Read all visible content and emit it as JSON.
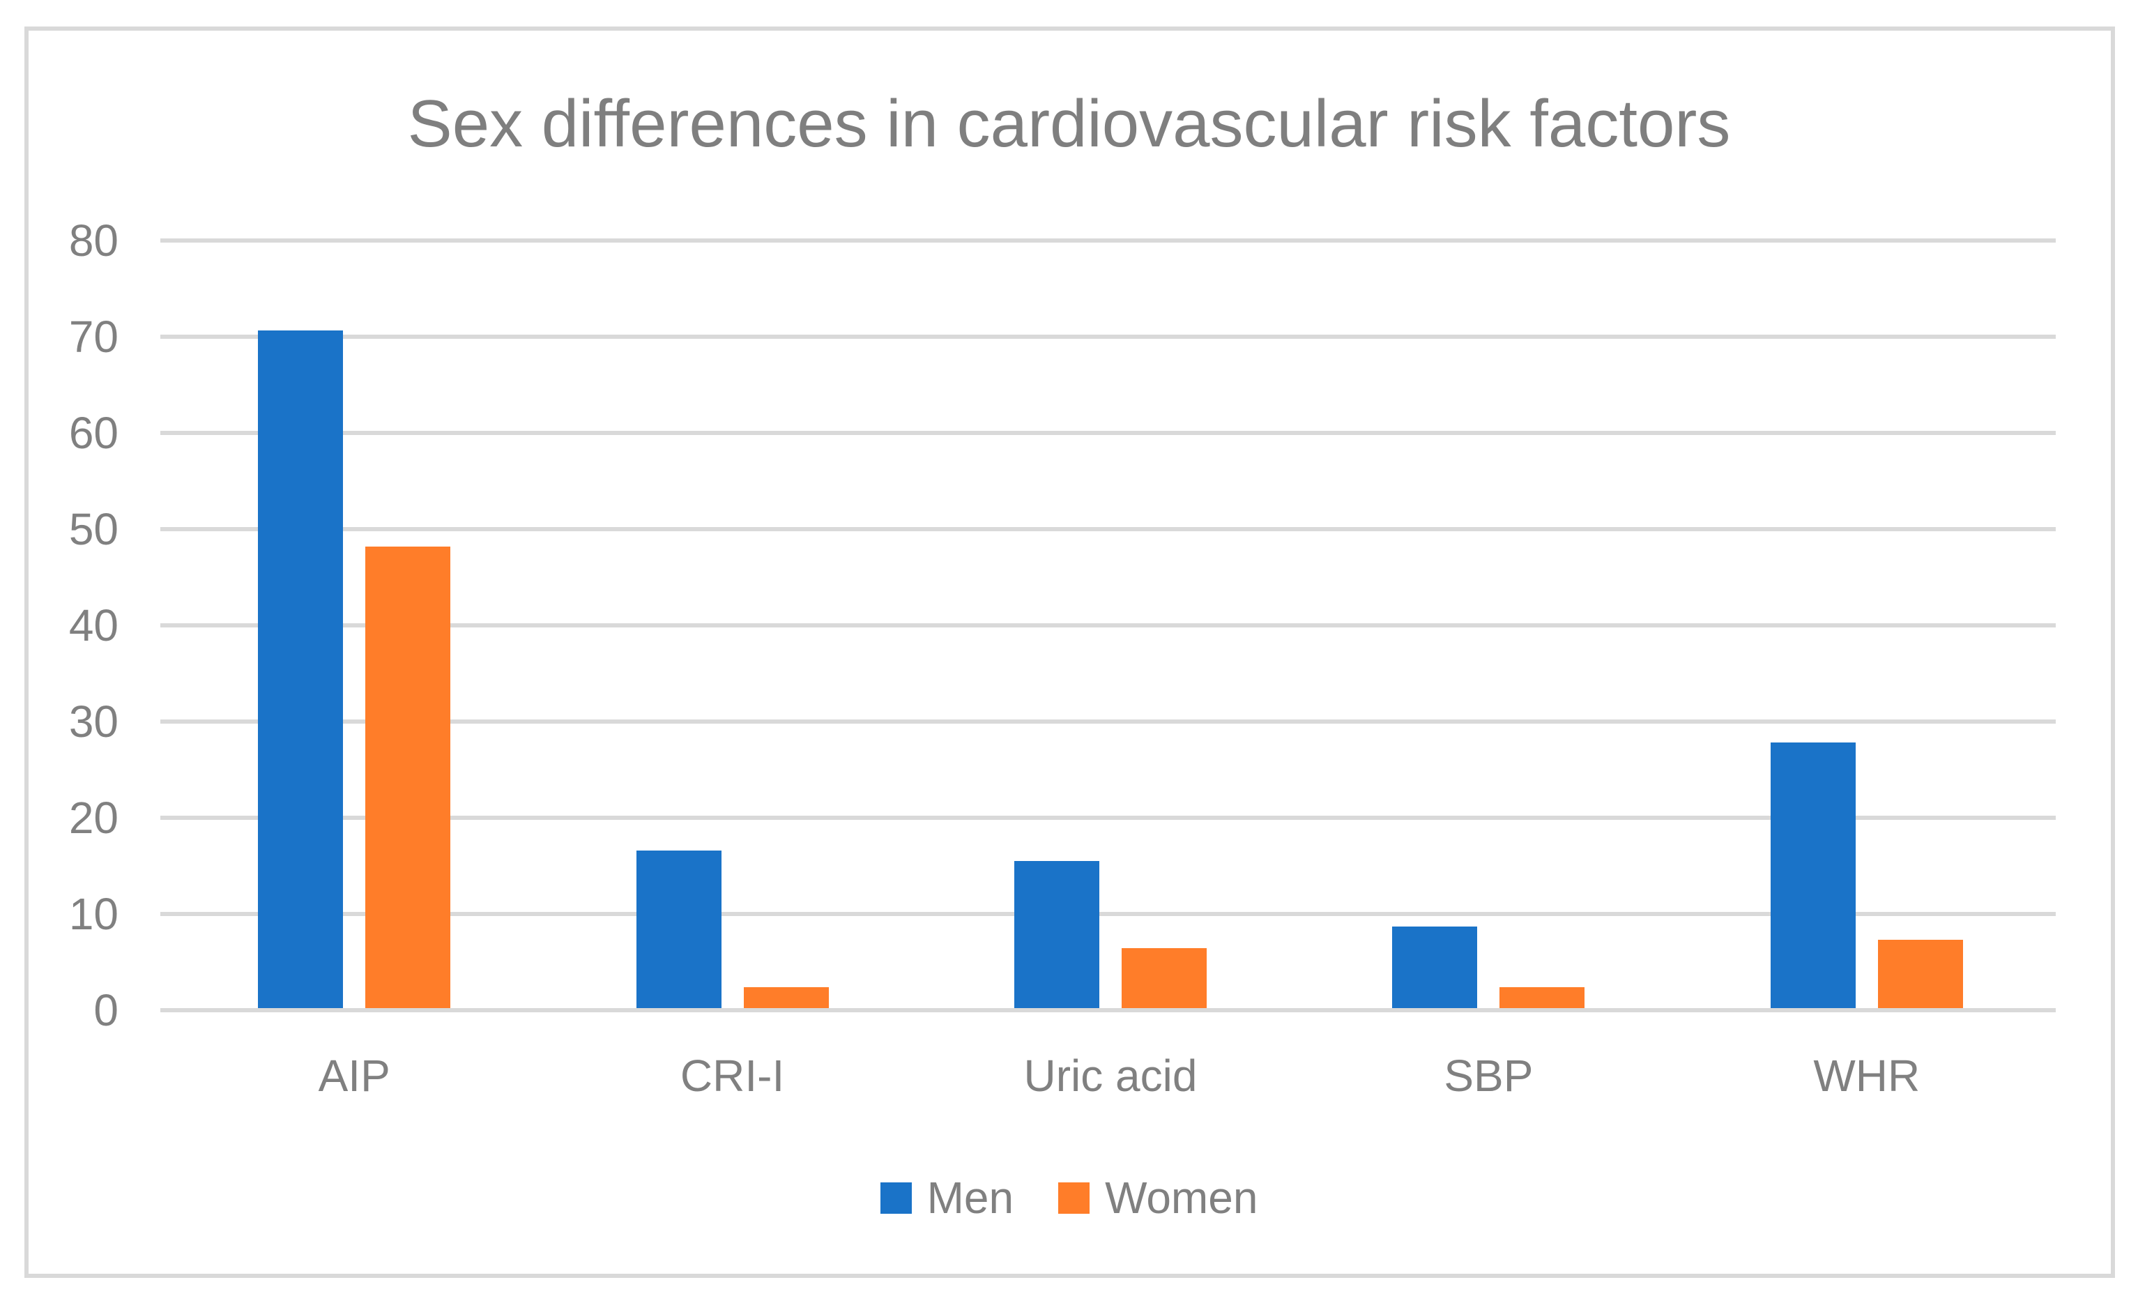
{
  "chart_data": {
    "type": "bar",
    "title": "Sex differences in cardiovascular risk factors",
    "categories": [
      "AIP",
      "CRI-I",
      "Uric acid",
      "SBP",
      "WHR"
    ],
    "series": [
      {
        "name": "Men",
        "color": "#1a73c8",
        "values": [
          70.4,
          16.4,
          15.3,
          8.5,
          27.6
        ]
      },
      {
        "name": "Women",
        "color": "#ff7d29",
        "values": [
          48.0,
          2.2,
          6.2,
          2.2,
          7.1
        ]
      }
    ],
    "xlabel": "",
    "ylabel": "",
    "ylim": [
      0,
      80
    ],
    "yticks": [
      0,
      10,
      20,
      30,
      40,
      50,
      60,
      70,
      80
    ],
    "grid": true,
    "legend_position": "bottom"
  },
  "colors": {
    "text": "#808080",
    "title_text": "#7f7f7f",
    "gridline": "#d9d9d9",
    "frame_border": "#d9d9d9",
    "background": "#ffffff"
  }
}
